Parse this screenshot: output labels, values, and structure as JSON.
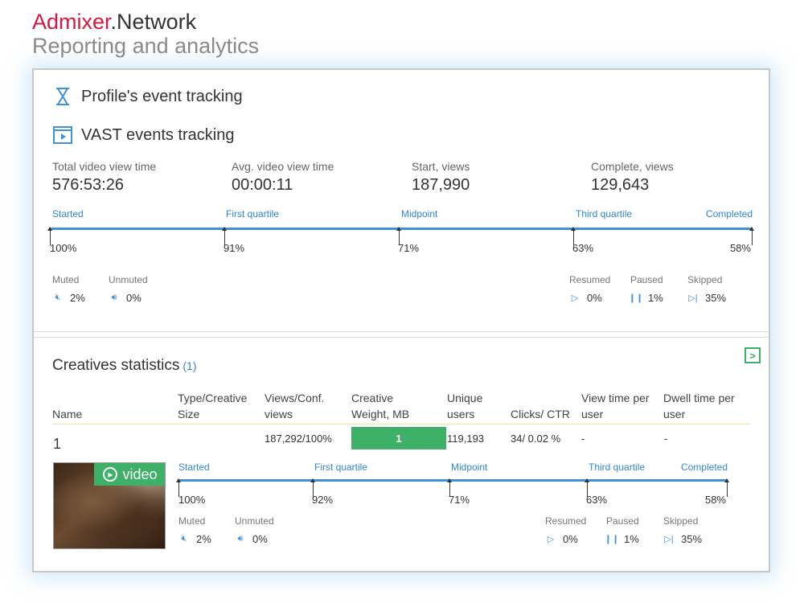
{
  "brand": {
    "name_accent": "Admixer",
    "name_rest": ".Network",
    "subtitle": "Reporting and analytics"
  },
  "profile_section": {
    "title": "Profile's event tracking",
    "icon": "hourglass-icon"
  },
  "vast_section": {
    "title": "VAST events tracking",
    "icon": "video-player-icon"
  },
  "stats": [
    {
      "label": "Total video view time",
      "value": "576:53:26"
    },
    {
      "label": "Avg. video view time",
      "value": "00:00:11"
    },
    {
      "label": "Start, views",
      "value": "187,990"
    },
    {
      "label": "Complete, views",
      "value": "129,643"
    }
  ],
  "stages": [
    "Started",
    "First quartile",
    "Midpoint",
    "Third quartile",
    "Completed"
  ],
  "main_track": {
    "percents": [
      "100%",
      "91%",
      "71%",
      "63%",
      "58%"
    ]
  },
  "main_audio": {
    "muted_label": "Muted",
    "muted_value": "2%",
    "unmuted_label": "Unmuted",
    "unmuted_value": "0%"
  },
  "main_playback": {
    "resumed_label": "Resumed",
    "resumed_value": "0%",
    "paused_label": "Paused",
    "paused_value": "1%",
    "skipped_label": "Skipped",
    "skipped_value": "35%"
  },
  "creatives": {
    "title": "Creatives statistics",
    "count": "(1)",
    "columns": [
      "Name",
      "Type/Creative Size",
      "Views/Conf. views",
      "Creative Weight, MB",
      "Unique users",
      "Clicks/ CTR",
      "View time per user",
      "Dwell time per user"
    ],
    "row": {
      "name": "1",
      "views": "187,292/100%",
      "weight": "1",
      "weight_fill": 1.0,
      "unique_users": "119,193",
      "clicks_ctr": "34/ 0.02 %",
      "view_time": "-",
      "dwell_time": "-",
      "badge": "video",
      "track_percents": [
        "100%",
        "92%",
        "71%",
        "63%",
        "58%"
      ],
      "muted_label": "Muted",
      "muted_value": "2%",
      "unmuted_label": "Unmuted",
      "unmuted_value": "0%",
      "resumed_label": "Resumed",
      "resumed_value": "0%",
      "paused_label": "Paused",
      "paused_value": "1%",
      "skipped_label": "Skipped",
      "skipped_value": "35%"
    }
  },
  "colors": {
    "accent_red": "#d6173f",
    "accent_blue": "#3f92d8",
    "accent_green": "#3eb067"
  }
}
